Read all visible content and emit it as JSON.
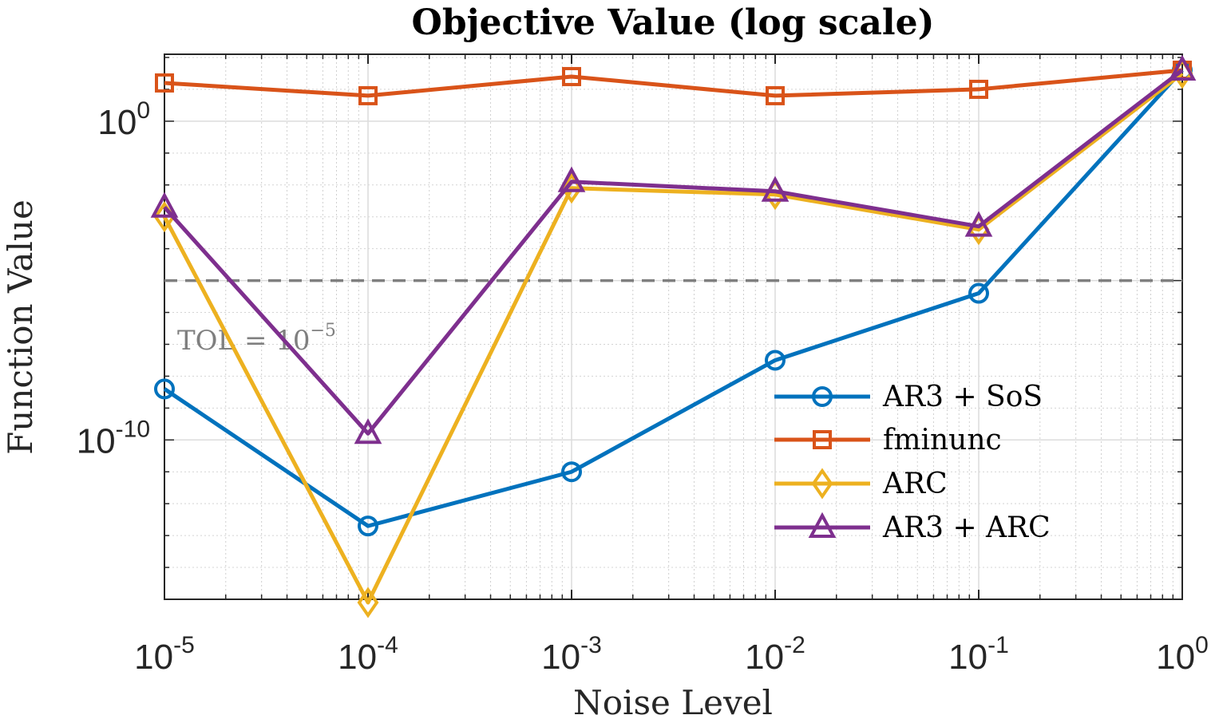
{
  "chart_data": {
    "type": "line",
    "title": "Objective Value (log scale)",
    "xlabel": "Noise Level",
    "ylabel": "Function Value",
    "xscale": "log",
    "yscale": "log",
    "x": [
      1e-05,
      0.0001,
      0.001,
      0.01,
      0.1,
      1
    ],
    "xlim": [
      1e-05,
      1
    ],
    "ylim_log10": [
      -15,
      2.1
    ],
    "x_ticks": [
      {
        "base": "10",
        "exp": "-5",
        "value": 1e-05
      },
      {
        "base": "10",
        "exp": "-4",
        "value": 0.0001
      },
      {
        "base": "10",
        "exp": "-3",
        "value": 0.001
      },
      {
        "base": "10",
        "exp": "-2",
        "value": 0.01
      },
      {
        "base": "10",
        "exp": "-1",
        "value": 0.1
      },
      {
        "base": "10",
        "exp": "0",
        "value": 1
      }
    ],
    "y_ticks": [
      {
        "base": "10",
        "exp": "0",
        "log10": 0
      },
      {
        "base": "10",
        "exp": "-10",
        "log10": -10
      }
    ],
    "grid": true,
    "legend_position": "lower-right",
    "series": [
      {
        "name": "AR3 + SoS",
        "color": "#0072BD",
        "marker": "circle",
        "values_log10": [
          -8.4,
          -12.7,
          -11.0,
          -7.5,
          -5.4,
          1.6
        ]
      },
      {
        "name": "fminunc",
        "color": "#D95319",
        "marker": "square",
        "values_log10": [
          1.2,
          0.8,
          1.4,
          0.8,
          1.0,
          1.6
        ]
      },
      {
        "name": "ARC",
        "color": "#EDB120",
        "marker": "diamond",
        "values_log10": [
          -3.0,
          -15.1,
          -2.1,
          -2.3,
          -3.4,
          1.5
        ]
      },
      {
        "name": "AR3 + ARC",
        "color": "#7E2F8E",
        "marker": "triangle",
        "values_log10": [
          -2.7,
          -9.8,
          -1.9,
          -2.2,
          -3.3,
          1.6
        ]
      }
    ],
    "reference_line": {
      "label_prefix": "TOL = 10",
      "label_exp": "−5",
      "y_log10": -5,
      "color": "#7f7f7f",
      "style": "dashed"
    }
  }
}
